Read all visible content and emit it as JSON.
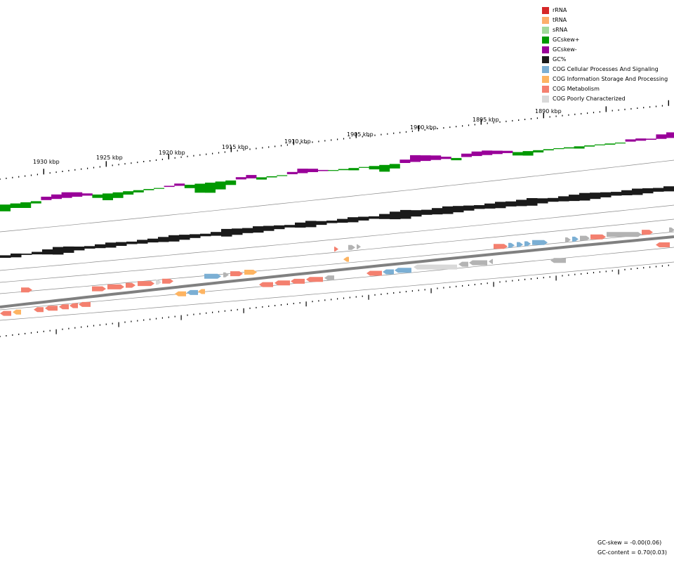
{
  "legend": [
    {
      "label": "rRNA",
      "color": "#d62728"
    },
    {
      "label": "tRNA",
      "color": "#fdae6b"
    },
    {
      "label": "sRNA",
      "color": "#a1d99b"
    },
    {
      "label": "GCskew+",
      "color": "#009900"
    },
    {
      "label": "GCskew-",
      "color": "#990099"
    },
    {
      "label": "GC%",
      "color": "#1a1a1a"
    },
    {
      "label": "COG Cellular Processes And Signaling",
      "color": "#7bafd4"
    },
    {
      "label": "COG Information Storage And Processing",
      "color": "#fdb462"
    },
    {
      "label": "COG Metabolism",
      "color": "#f4806f"
    },
    {
      "label": "COG Poorly Characterized",
      "color": "#d9d9d9"
    }
  ],
  "ruler_labels": [
    "1930 kbp",
    "1925 kbp",
    "1920 kbp",
    "1915 kbp",
    "1910 kbp",
    "1905 kbp",
    "1900 kbp",
    "1895 kbp",
    "1890 kbp"
  ],
  "stats": {
    "gc_skew": "GC-skew = -0.00(0.06)",
    "gc_content": "GC-content = 0.70(0.03)"
  },
  "colors": {
    "cog_gray": "#b3b3b3",
    "backbone": "#808080"
  }
}
